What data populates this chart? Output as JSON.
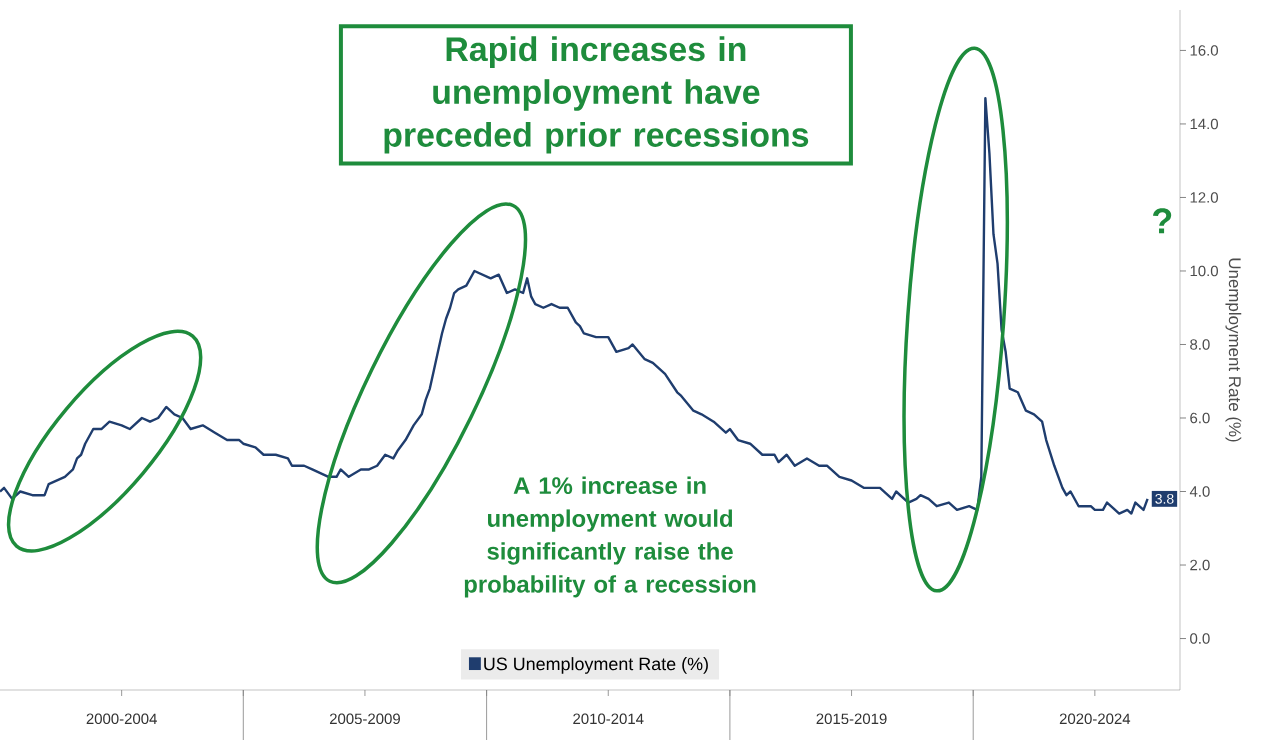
{
  "chart_data": {
    "type": "line",
    "title": "Rapid increases in unemployment have preceded prior recessions",
    "ylabel": "Unemployment Rate (%)",
    "x": [
      "2000-01",
      "2000-02",
      "2000-04",
      "2000-06",
      "2000-09",
      "2000-12",
      "2001-01",
      "2001-03",
      "2001-05",
      "2001-07",
      "2001-08",
      "2001-09",
      "2001-10",
      "2001-11",
      "2001-12",
      "2002-02",
      "2002-04",
      "2002-07",
      "2002-09",
      "2002-12",
      "2003-02",
      "2003-04",
      "2003-06",
      "2003-08",
      "2003-10",
      "2003-12",
      "2004-03",
      "2004-06",
      "2004-09",
      "2004-12",
      "2005-01",
      "2005-04",
      "2005-06",
      "2005-09",
      "2005-12",
      "2006-01",
      "2006-04",
      "2006-06",
      "2006-10",
      "2006-12",
      "2007-01",
      "2007-03",
      "2007-06",
      "2007-08",
      "2007-10",
      "2007-12",
      "2008-02",
      "2008-03",
      "2008-05",
      "2008-07",
      "2008-09",
      "2008-10",
      "2008-11",
      "2008-12",
      "2009-01",
      "2009-02",
      "2009-03",
      "2009-04",
      "2009-05",
      "2009-06",
      "2009-08",
      "2009-10",
      "2009-12",
      "2010-02",
      "2010-04",
      "2010-06",
      "2010-08",
      "2010-10",
      "2010-11",
      "2010-12",
      "2011-01",
      "2011-03",
      "2011-05",
      "2011-07",
      "2011-09",
      "2011-11",
      "2011-12",
      "2012-01",
      "2012-04",
      "2012-07",
      "2012-09",
      "2012-12",
      "2013-01",
      "2013-04",
      "2013-06",
      "2013-09",
      "2013-12",
      "2014-01",
      "2014-04",
      "2014-06",
      "2014-09",
      "2014-12",
      "2015-01",
      "2015-03",
      "2015-06",
      "2015-09",
      "2015-12",
      "2016-01",
      "2016-03",
      "2016-05",
      "2016-08",
      "2016-11",
      "2017-01",
      "2017-04",
      "2017-07",
      "2017-10",
      "2017-12",
      "2018-02",
      "2018-05",
      "2018-06",
      "2018-09",
      "2018-11",
      "2018-12",
      "2019-02",
      "2019-04",
      "2019-07",
      "2019-09",
      "2019-12",
      "2020-02",
      "2020-03",
      "2020-04",
      "2020-05",
      "2020-06",
      "2020-07",
      "2020-08",
      "2020-09",
      "2020-10",
      "2020-12",
      "2021-02",
      "2021-04",
      "2021-06",
      "2021-07",
      "2021-09",
      "2021-11",
      "2021-12",
      "2022-01",
      "2022-03",
      "2022-06",
      "2022-07",
      "2022-09",
      "2022-10",
      "2022-12",
      "2023-01",
      "2023-03",
      "2023-04",
      "2023-05",
      "2023-07",
      "2023-08"
    ],
    "series": [
      {
        "name": "US Unemployment Rate (%)",
        "color": "#1f3d6e",
        "values": [
          4.0,
          4.1,
          3.8,
          4.0,
          3.9,
          3.9,
          4.2,
          4.3,
          4.4,
          4.6,
          4.9,
          5.0,
          5.3,
          5.5,
          5.7,
          5.7,
          5.9,
          5.8,
          5.7,
          6.0,
          5.9,
          6.0,
          6.3,
          6.1,
          6.0,
          5.7,
          5.8,
          5.6,
          5.4,
          5.4,
          5.3,
          5.2,
          5.0,
          5.0,
          4.9,
          4.7,
          4.7,
          4.6,
          4.4,
          4.4,
          4.6,
          4.4,
          4.6,
          4.6,
          4.7,
          5.0,
          4.9,
          5.1,
          5.4,
          5.8,
          6.1,
          6.5,
          6.8,
          7.3,
          7.8,
          8.3,
          8.7,
          9.0,
          9.4,
          9.5,
          9.6,
          10.0,
          9.9,
          9.8,
          9.9,
          9.4,
          9.5,
          9.4,
          9.8,
          9.3,
          9.1,
          9.0,
          9.1,
          9.0,
          9.0,
          8.6,
          8.5,
          8.3,
          8.2,
          8.2,
          7.8,
          7.9,
          8.0,
          7.6,
          7.5,
          7.2,
          6.7,
          6.6,
          6.2,
          6.1,
          5.9,
          5.6,
          5.7,
          5.4,
          5.3,
          5.0,
          5.0,
          4.8,
          5.0,
          4.7,
          4.9,
          4.7,
          4.7,
          4.4,
          4.3,
          4.1,
          4.1,
          4.1,
          3.8,
          4.0,
          3.7,
          3.8,
          3.9,
          3.8,
          3.6,
          3.7,
          3.5,
          3.6,
          3.5,
          4.4,
          14.7,
          13.2,
          11.0,
          10.2,
          8.4,
          7.8,
          6.8,
          6.7,
          6.2,
          6.1,
          5.9,
          5.4,
          4.7,
          4.1,
          3.9,
          4.0,
          3.6,
          3.6,
          3.5,
          3.5,
          3.7,
          3.5,
          3.4,
          3.5,
          3.4,
          3.7,
          3.5,
          3.8
        ],
        "value_labels": [
          null,
          null,
          null,
          null,
          null,
          null,
          null,
          null,
          null,
          null,
          null,
          null,
          null,
          null,
          null,
          null,
          null,
          null,
          null,
          null,
          null,
          null,
          null,
          null,
          null,
          null,
          null,
          null,
          null,
          null,
          null,
          null,
          null,
          null,
          null,
          null,
          null,
          null,
          null,
          null,
          null,
          null,
          null,
          null,
          null,
          null,
          null,
          null,
          null,
          null,
          null,
          null,
          null,
          null,
          null,
          null,
          null,
          null,
          null,
          null,
          null,
          null,
          null,
          null,
          null,
          null,
          null,
          null,
          null,
          null,
          null,
          null,
          null,
          null,
          null,
          null,
          null,
          null,
          null,
          null,
          null,
          null,
          null,
          null,
          null,
          null,
          null,
          null,
          null,
          null,
          null,
          null,
          null,
          null,
          null,
          null,
          null,
          null,
          null,
          null,
          null,
          null,
          null,
          null,
          null,
          null,
          null,
          null,
          null,
          null,
          null,
          null,
          null,
          null,
          null,
          null,
          null,
          null,
          null,
          null,
          null,
          null,
          null,
          null,
          null,
          null,
          null,
          null,
          null,
          null,
          null,
          null,
          null,
          null,
          null,
          null,
          null,
          null,
          null,
          null,
          null,
          null,
          null,
          null,
          null,
          null,
          null,
          "3.8"
        ]
      }
    ],
    "xlim": [
      "2000-01",
      "2024-04"
    ],
    "xticks": [
      {
        "value": "2002-07",
        "label": "2000-2004"
      },
      {
        "value": "2005-01",
        "label": null
      },
      {
        "value": "2007-07",
        "label": "2005-2009"
      },
      {
        "value": "2010-01",
        "label": null
      },
      {
        "value": "2012-07",
        "label": "2010-2014"
      },
      {
        "value": "2015-01",
        "label": null
      },
      {
        "value": "2017-07",
        "label": "2015-2019"
      },
      {
        "value": "2020-01",
        "label": null
      },
      {
        "value": "2022-07",
        "label": "2020-2024"
      }
    ],
    "ylim": [
      -1.4,
      17.1
    ],
    "yticks": [
      {
        "value": 0,
        "label": "0.0"
      },
      {
        "value": 2,
        "label": "2.0"
      },
      {
        "value": 4,
        "label": "4.0"
      },
      {
        "value": 6,
        "label": "6.0"
      },
      {
        "value": 8,
        "label": "8.0"
      },
      {
        "value": 10,
        "label": "10.0"
      },
      {
        "value": 12,
        "label": "12.0"
      },
      {
        "value": 14,
        "label": "14.0"
      },
      {
        "value": 16,
        "label": "16.0"
      }
    ],
    "legend": "bottom",
    "annotations": [
      "A 1% increase in unemployment would significantly raise the probability of a recession",
      "?"
    ]
  }
}
